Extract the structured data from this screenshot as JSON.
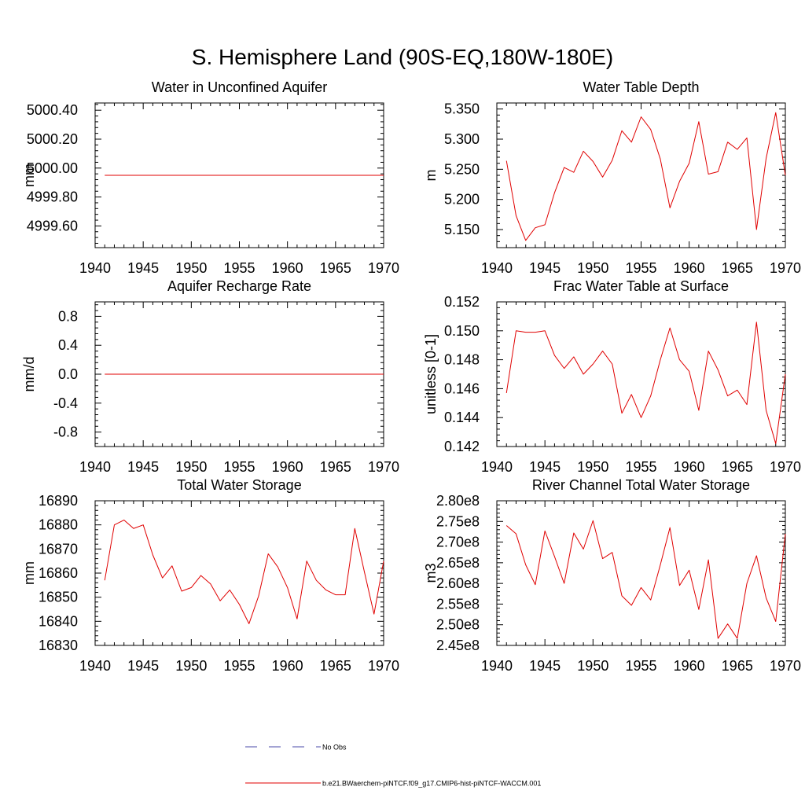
{
  "figure": {
    "title": "S. Hemisphere Land (90S-EQ,180W-180E)"
  },
  "legend": {
    "entries": [
      {
        "label": "No Obs",
        "color": "#4a4aaa",
        "style": "dashed"
      },
      {
        "label": "b.e21.BWaerchem-piNTCF.f09_g17.CMIP6-hist-piNTCF-WACCM.001",
        "color": "#e00000",
        "style": "solid"
      }
    ]
  },
  "chart_data": [
    {
      "type": "line",
      "title": "Water in Unconfined Aquifer",
      "xlabel": "",
      "ylabel": "mm",
      "xlim": [
        1940,
        1970
      ],
      "ylim": [
        4999.45,
        5000.45
      ],
      "xticks": [
        1940,
        1945,
        1950,
        1955,
        1960,
        1965,
        1970
      ],
      "xtick_labels": [
        "1940",
        "1945",
        "1950",
        "1955",
        "1960",
        "1965",
        "1970"
      ],
      "yticks": [
        4999.6,
        4999.8,
        5000.0,
        5000.2,
        5000.4
      ],
      "ytick_labels": [
        "4999.60",
        "4999.80",
        "5000.00",
        "5000.20",
        "5000.40"
      ],
      "grid": false,
      "series": [
        {
          "color": "#e00000",
          "x": [
            1941,
            1942,
            1943,
            1944,
            1945,
            1946,
            1947,
            1948,
            1949,
            1950,
            1951,
            1952,
            1953,
            1954,
            1955,
            1956,
            1957,
            1958,
            1959,
            1960,
            1961,
            1962,
            1963,
            1964,
            1965,
            1966,
            1967,
            1968,
            1969,
            1970
          ],
          "y": [
            4999.95,
            4999.95,
            4999.95,
            4999.95,
            4999.95,
            4999.95,
            4999.95,
            4999.95,
            4999.95,
            4999.95,
            4999.95,
            4999.95,
            4999.95,
            4999.95,
            4999.95,
            4999.95,
            4999.95,
            4999.95,
            4999.95,
            4999.95,
            4999.95,
            4999.95,
            4999.95,
            4999.95,
            4999.95,
            4999.95,
            4999.95,
            4999.95,
            4999.95,
            4999.95
          ]
        }
      ]
    },
    {
      "type": "line",
      "title": "Water Table Depth",
      "xlabel": "",
      "ylabel": "m",
      "xlim": [
        1940,
        1970
      ],
      "ylim": [
        5.12,
        5.36
      ],
      "xticks": [
        1940,
        1945,
        1950,
        1955,
        1960,
        1965,
        1970
      ],
      "xtick_labels": [
        "1940",
        "1945",
        "1950",
        "1955",
        "1960",
        "1965",
        "1970"
      ],
      "yticks": [
        5.15,
        5.2,
        5.25,
        5.3,
        5.35
      ],
      "ytick_labels": [
        "5.150",
        "5.200",
        "5.250",
        "5.300",
        "5.350"
      ],
      "grid": false,
      "series": [
        {
          "color": "#e00000",
          "x": [
            1941,
            1942,
            1943,
            1944,
            1945,
            1946,
            1947,
            1948,
            1949,
            1950,
            1951,
            1952,
            1953,
            1954,
            1955,
            1956,
            1957,
            1958,
            1959,
            1960,
            1961,
            1962,
            1963,
            1964,
            1965,
            1966,
            1967,
            1968,
            1969,
            1970
          ],
          "y": [
            5.264,
            5.173,
            5.132,
            5.153,
            5.158,
            5.211,
            5.253,
            5.245,
            5.28,
            5.263,
            5.237,
            5.265,
            5.314,
            5.295,
            5.337,
            5.316,
            5.267,
            5.186,
            5.23,
            5.26,
            5.329,
            5.242,
            5.246,
            5.295,
            5.283,
            5.302,
            5.15,
            5.268,
            5.344,
            5.24
          ]
        }
      ]
    },
    {
      "type": "line",
      "title": "Aquifer Recharge Rate",
      "xlabel": "",
      "ylabel": "mm/d",
      "xlim": [
        1940,
        1970
      ],
      "ylim": [
        -1.0,
        1.0
      ],
      "xticks": [
        1940,
        1945,
        1950,
        1955,
        1960,
        1965,
        1970
      ],
      "xtick_labels": [
        "1940",
        "1945",
        "1950",
        "1955",
        "1960",
        "1965",
        "1970"
      ],
      "yticks": [
        -0.8,
        -0.4,
        0.0,
        0.4,
        0.8
      ],
      "ytick_labels": [
        "-0.8",
        "-0.4",
        "0.0",
        "0.4",
        "0.8"
      ],
      "grid": false,
      "series": [
        {
          "color": "#e00000",
          "x": [
            1941,
            1942,
            1943,
            1944,
            1945,
            1946,
            1947,
            1948,
            1949,
            1950,
            1951,
            1952,
            1953,
            1954,
            1955,
            1956,
            1957,
            1958,
            1959,
            1960,
            1961,
            1962,
            1963,
            1964,
            1965,
            1966,
            1967,
            1968,
            1969,
            1970
          ],
          "y": [
            0,
            0,
            0,
            0,
            0,
            0,
            0,
            0,
            0,
            0,
            0,
            0,
            0,
            0,
            0,
            0,
            0,
            0,
            0,
            0,
            0,
            0,
            0,
            0,
            0,
            0,
            0,
            0,
            0,
            0
          ]
        }
      ]
    },
    {
      "type": "line",
      "title": "Frac Water Table at Surface",
      "xlabel": "",
      "ylabel": "unitless [0-1]",
      "xlim": [
        1940,
        1970
      ],
      "ylim": [
        0.142,
        0.152
      ],
      "xticks": [
        1940,
        1945,
        1950,
        1955,
        1960,
        1965,
        1970
      ],
      "xtick_labels": [
        "1940",
        "1945",
        "1950",
        "1955",
        "1960",
        "1965",
        "1970"
      ],
      "yticks": [
        0.142,
        0.144,
        0.146,
        0.148,
        0.15,
        0.152
      ],
      "ytick_labels": [
        "0.142",
        "0.144",
        "0.146",
        "0.148",
        "0.150",
        "0.152"
      ],
      "grid": false,
      "series": [
        {
          "color": "#e00000",
          "x": [
            1941,
            1942,
            1943,
            1944,
            1945,
            1946,
            1947,
            1948,
            1949,
            1950,
            1951,
            1952,
            1953,
            1954,
            1955,
            1956,
            1957,
            1958,
            1959,
            1960,
            1961,
            1962,
            1963,
            1964,
            1965,
            1966,
            1967,
            1968,
            1969,
            1970
          ],
          "y": [
            0.1457,
            0.15,
            0.1499,
            0.1499,
            0.15,
            0.1483,
            0.1474,
            0.1482,
            0.147,
            0.1477,
            0.1486,
            0.1477,
            0.1443,
            0.1456,
            0.144,
            0.1455,
            0.148,
            0.1502,
            0.148,
            0.1472,
            0.1445,
            0.1486,
            0.1473,
            0.1455,
            0.1459,
            0.1449,
            0.1506,
            0.1445,
            0.1422,
            0.147
          ]
        }
      ]
    },
    {
      "type": "line",
      "title": "Total Water Storage",
      "xlabel": "",
      "ylabel": "mm",
      "xlim": [
        1940,
        1970
      ],
      "ylim": [
        16830,
        16890
      ],
      "xticks": [
        1940,
        1945,
        1950,
        1955,
        1960,
        1965,
        1970
      ],
      "xtick_labels": [
        "1940",
        "1945",
        "1950",
        "1955",
        "1960",
        "1965",
        "1970"
      ],
      "yticks": [
        16830,
        16840,
        16850,
        16860,
        16870,
        16880,
        16890
      ],
      "ytick_labels": [
        "16830",
        "16840",
        "16850",
        "16860",
        "16870",
        "16880",
        "16890"
      ],
      "grid": false,
      "series": [
        {
          "color": "#e00000",
          "x": [
            1941,
            1942,
            1943,
            1944,
            1945,
            1946,
            1947,
            1948,
            1949,
            1950,
            1951,
            1952,
            1953,
            1954,
            1955,
            1956,
            1957,
            1958,
            1959,
            1960,
            1961,
            1962,
            1963,
            1964,
            1965,
            1966,
            1967,
            1968,
            1969,
            1970
          ],
          "y": [
            16857,
            16880,
            16882,
            16878.5,
            16880,
            16867.5,
            16858,
            16863,
            16852.5,
            16854,
            16859,
            16855.5,
            16848.5,
            16853,
            16847,
            16839,
            16850.5,
            16868,
            16862.5,
            16854,
            16841,
            16865,
            16857,
            16853,
            16851,
            16851,
            16878.5,
            16860.5,
            16843,
            16865
          ]
        }
      ]
    },
    {
      "type": "line",
      "title": "River Channel Total Water Storage",
      "xlabel": "",
      "ylabel": "m3",
      "xlim": [
        1940,
        1970
      ],
      "ylim": [
        245000000.0,
        280000000.0
      ],
      "xticks": [
        1940,
        1945,
        1950,
        1955,
        1960,
        1965,
        1970
      ],
      "xtick_labels": [
        "1940",
        "1945",
        "1950",
        "1955",
        "1960",
        "1965",
        "1970"
      ],
      "yticks": [
        245000000.0,
        250000000.0,
        255000000.0,
        260000000.0,
        265000000.0,
        270000000.0,
        275000000.0,
        280000000.0
      ],
      "ytick_labels": [
        "2.45e8",
        "2.50e8",
        "2.55e8",
        "2.60e8",
        "2.65e8",
        "2.70e8",
        "2.75e8",
        "2.80e8"
      ],
      "grid": false,
      "series": [
        {
          "color": "#e00000",
          "x": [
            1941,
            1942,
            1943,
            1944,
            1945,
            1946,
            1947,
            1948,
            1949,
            1950,
            1951,
            1952,
            1953,
            1954,
            1955,
            1956,
            1957,
            1958,
            1959,
            1960,
            1961,
            1962,
            1963,
            1964,
            1965,
            1966,
            1967,
            1968,
            1969,
            1970
          ],
          "y": [
            274000000.0,
            272000000.0,
            264500000.0,
            259700000.0,
            272700000.0,
            266500000.0,
            260000000.0,
            272200000.0,
            268300000.0,
            275200000.0,
            266000000.0,
            267500000.0,
            257000000.0,
            254700000.0,
            259000000.0,
            256000000.0,
            264500000.0,
            273500000.0,
            259500000.0,
            263200000.0,
            253700000.0,
            265700000.0,
            246700000.0,
            250200000.0,
            246700000.0,
            260000000.0,
            266700000.0,
            256500000.0,
            250800000.0,
            272000000.0
          ]
        }
      ]
    }
  ]
}
